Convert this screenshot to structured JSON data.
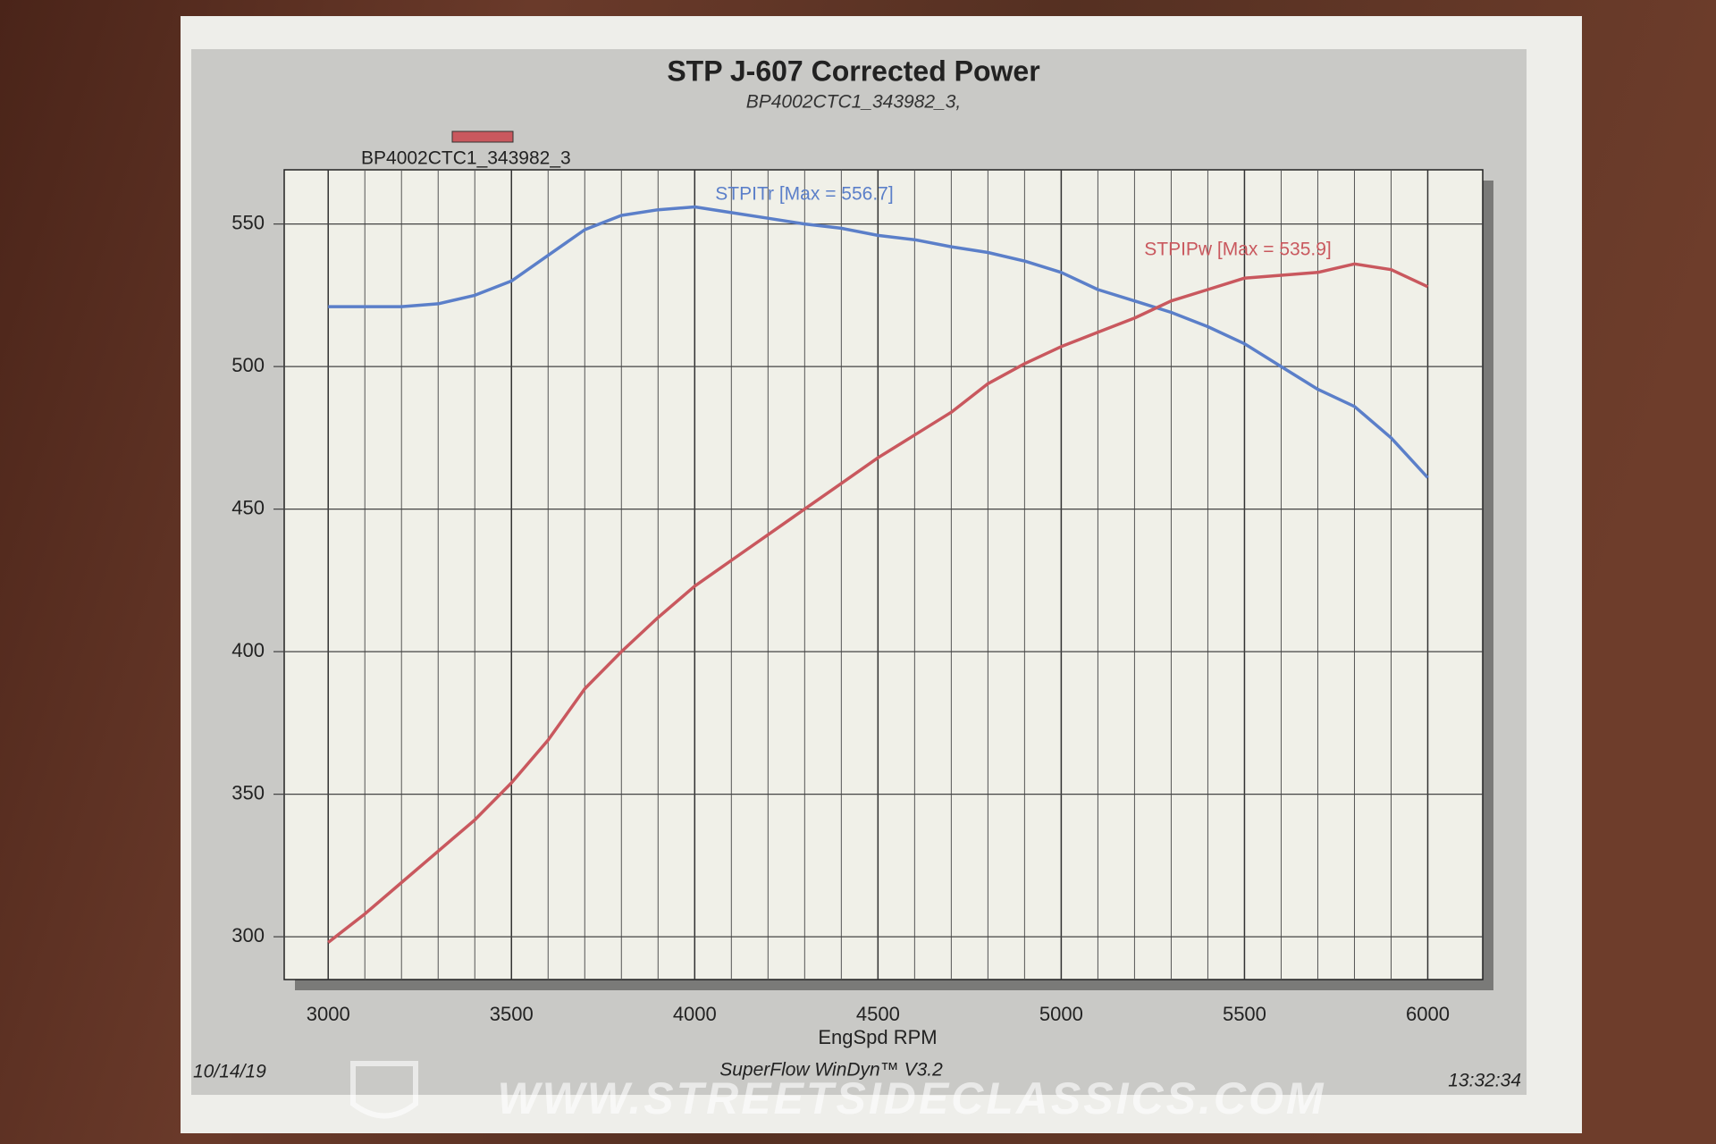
{
  "chart_data": {
    "type": "line",
    "title": "STP J-607 Corrected Power",
    "subtitle": "BP4002CTC1_343982_3,",
    "legend_label": "BP4002CTC1_343982_3",
    "legend_color": "#c9585e",
    "x_label": "EngSpd RPM",
    "x": [
      3000,
      3100,
      3200,
      3300,
      3400,
      3500,
      3600,
      3700,
      3800,
      3900,
      4000,
      4100,
      4200,
      4300,
      4400,
      4500,
      4600,
      4700,
      4800,
      4900,
      5000,
      5100,
      5200,
      5300,
      5400,
      5500,
      5600,
      5700,
      5800,
      5900,
      6000
    ],
    "series": [
      {
        "name": "STPITr [Max = 556.7]",
        "color": "#5b7fc9",
        "values": [
          521,
          521,
          521,
          522,
          525,
          530,
          539,
          548,
          553,
          555,
          556,
          554,
          552,
          550,
          548.5,
          546,
          544.5,
          542,
          540,
          537,
          533,
          527,
          523,
          519,
          514,
          508,
          500,
          492,
          486,
          475,
          461
        ]
      },
      {
        "name": "STPIPw [Max = 535.9]",
        "color": "#c9585e",
        "values": [
          298,
          308,
          319,
          330,
          341,
          354,
          369,
          387,
          400,
          412,
          423,
          432,
          441,
          450,
          459,
          468,
          476,
          484,
          494,
          501,
          507,
          512,
          517,
          523,
          527,
          531,
          532,
          533,
          536,
          534,
          528
        ]
      }
    ],
    "xlim": [
      2880,
      6150
    ],
    "xticks": [
      3000,
      3500,
      4000,
      4500,
      5000,
      5500,
      6000
    ],
    "ylim": [
      285,
      569
    ],
    "yticks": [
      300,
      350,
      400,
      450,
      500,
      550
    ],
    "grid": true,
    "footer_left": "10/14/19",
    "footer_center": "SuperFlow WinDyn™ V3.2",
    "footer_right": "13:32:34",
    "watermark": "WWW.STREETSIDECLASSICS.COM"
  }
}
